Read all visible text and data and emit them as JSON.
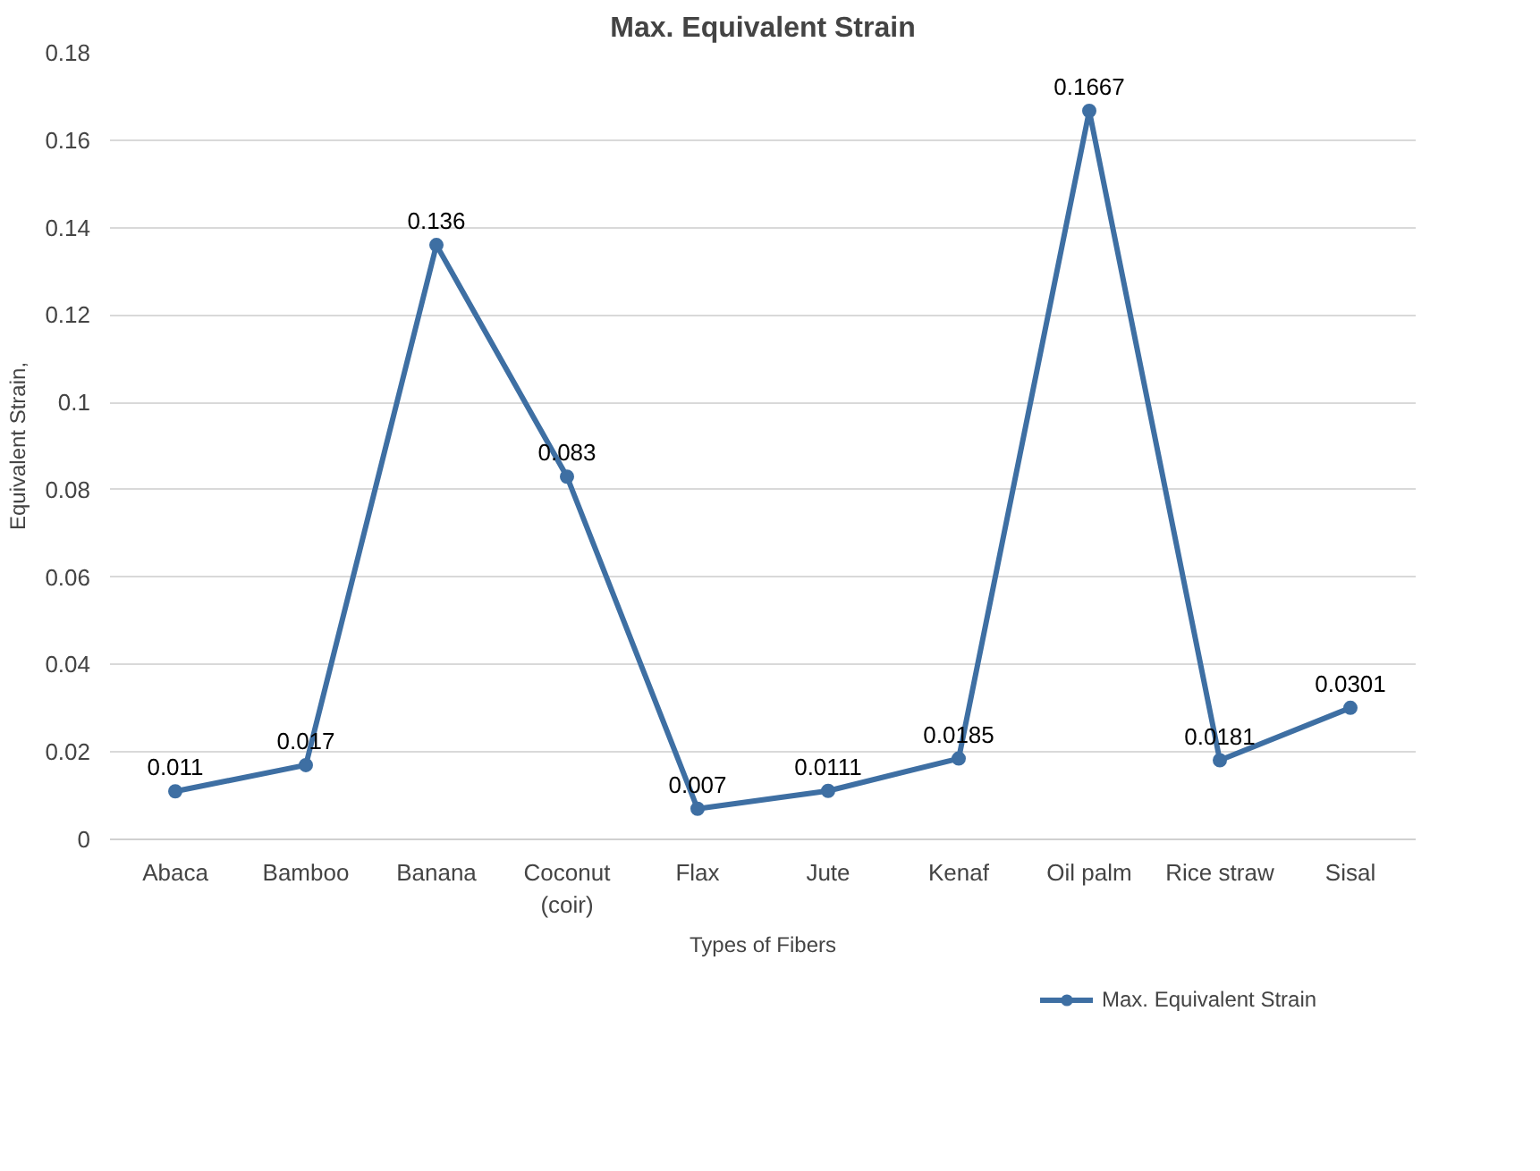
{
  "chart_data": {
    "type": "line",
    "title": "Max. Equivalent Strain",
    "xlabel": "Types of Fibers",
    "ylabel": "Equivalent Strain,",
    "categories": [
      "Abaca",
      "Bamboo",
      "Banana",
      "Coconut\n(coir)",
      "Flax",
      "Jute",
      "Kenaf",
      "Oil palm",
      "Rice straw",
      "Sisal"
    ],
    "series": [
      {
        "name": "Max. Equivalent Strain",
        "color": "#3e6fa3",
        "values": [
          0.011,
          0.017,
          0.136,
          0.083,
          0.007,
          0.0111,
          0.0185,
          0.1667,
          0.0181,
          0.0301
        ]
      }
    ],
    "ylim": [
      0,
      0.18
    ],
    "yticks": [
      0,
      0.02,
      0.04,
      0.06,
      0.08,
      0.1,
      0.12,
      0.14,
      0.16,
      0.18
    ],
    "grid": "y",
    "legend": "bottom",
    "marker": "circle",
    "line_style": "solid",
    "data_labels": true
  }
}
